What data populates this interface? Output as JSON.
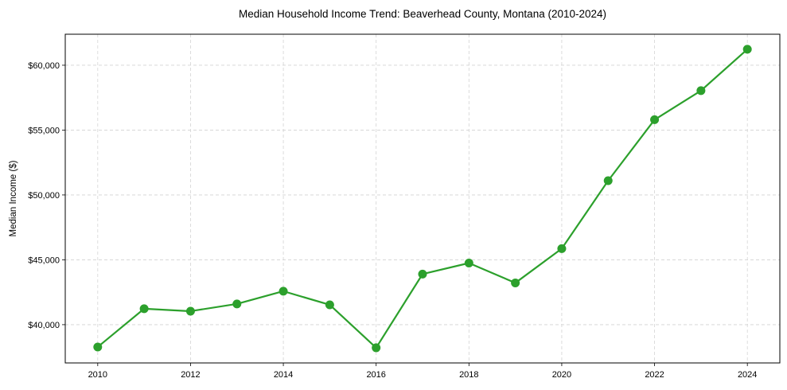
{
  "chart_data": {
    "type": "line",
    "title": "Median Household Income Trend: Beaverhead County, Montana (2010-2024)",
    "xlabel": "",
    "ylabel": "Median Income ($)",
    "x": [
      2010,
      2011,
      2012,
      2013,
      2014,
      2015,
      2016,
      2017,
      2018,
      2019,
      2020,
      2021,
      2022,
      2023,
      2024
    ],
    "series": [
      {
        "name": "Median Household Income",
        "color": "#2ca02c",
        "marker": "circle",
        "values": [
          38280,
          41230,
          41040,
          41600,
          42580,
          41530,
          38220,
          43900,
          44750,
          43220,
          45860,
          51100,
          55800,
          58040,
          61230
        ]
      }
    ],
    "xticks": [
      2010,
      2012,
      2014,
      2016,
      2018,
      2020,
      2022,
      2024
    ],
    "xtick_labels": [
      "2010",
      "2012",
      "2014",
      "2016",
      "2018",
      "2020",
      "2022",
      "2024"
    ],
    "yticks": [
      40000,
      45000,
      50000,
      55000,
      60000
    ],
    "ytick_labels": [
      "$40,000",
      "$45,000",
      "$50,000",
      "$55,000",
      "$60,000"
    ],
    "xlim": [
      2009.3,
      2024.7
    ],
    "ylim": [
      37050,
      62390
    ],
    "grid": true,
    "grid_style": "dashed",
    "legend": null
  }
}
